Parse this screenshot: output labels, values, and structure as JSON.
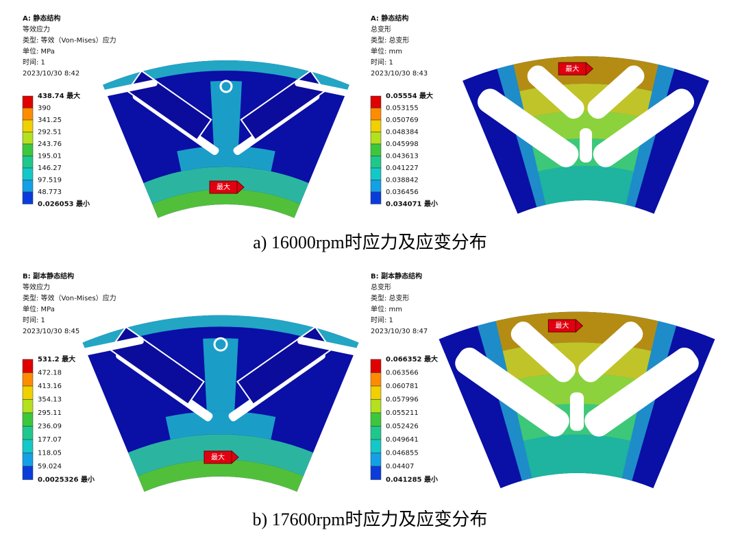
{
  "panels": [
    {
      "title": "A: 静态结构",
      "result": "等效应力",
      "type": "类型: 等效（Von-Mises）应力",
      "unit": "单位: MPa",
      "time": "时间: 1",
      "date": "2023/10/30 8:42",
      "legend": [
        "438.74 最大",
        "390",
        "341.25",
        "292.51",
        "243.76",
        "195.01",
        "146.27",
        "97.519",
        "48.773",
        "0.026053 最小"
      ],
      "marker": "最大"
    },
    {
      "title": "A: 静态结构",
      "result": "总变形",
      "type": "类型: 总变形",
      "unit": "单位: mm",
      "time": "时间: 1",
      "date": "2023/10/30 8:43",
      "legend": [
        "0.05554 最大",
        "0.053155",
        "0.050769",
        "0.048384",
        "0.045998",
        "0.043613",
        "0.041227",
        "0.038842",
        "0.036456",
        "0.034071 最小"
      ],
      "marker": "最大"
    },
    {
      "title": "B: 副本静态结构",
      "result": "等效应力",
      "type": "类型: 等效（Von-Mises）应力",
      "unit": "单位: MPa",
      "time": "时间: 1",
      "date": "2023/10/30 8:45",
      "legend": [
        "531.2 最大",
        "472.18",
        "413.16",
        "354.13",
        "295.11",
        "236.09",
        "177.07",
        "118.05",
        "59.024",
        "0.0025326 最小"
      ],
      "marker": "最大"
    },
    {
      "title": "B: 副本静态结构",
      "result": "总变形",
      "type": "类型: 总变形",
      "unit": "单位: mm",
      "time": "时间: 1",
      "date": "2023/10/30 8:47",
      "legend": [
        "0.066352 最大",
        "0.063566",
        "0.060781",
        "0.057996",
        "0.055211",
        "0.052426",
        "0.049641",
        "0.046855",
        "0.04407",
        "0.041285 最小"
      ],
      "marker": "最大"
    }
  ],
  "captions": [
    "a) 16000rpm时应力及应变分布",
    "b) 17600rpm时应力及应变分布"
  ]
}
